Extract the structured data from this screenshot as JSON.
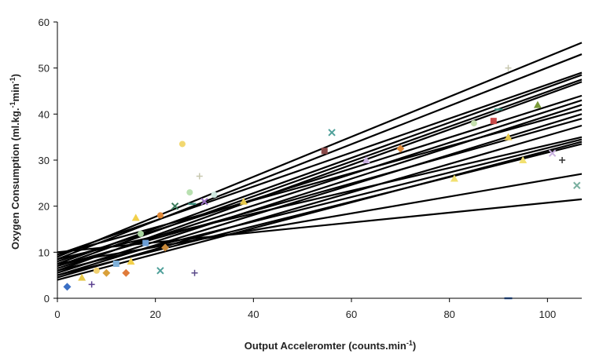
{
  "chart_data": {
    "type": "line",
    "title": "",
    "xlabel_main": "Output Acceleromter (counts.min",
    "xlabel_sup": "-1",
    "xlabel_end": ")",
    "ylabel_main": "Oxygen Consumption (ml.kg.",
    "ylabel_sup1": "-1",
    "ylabel_mid": "min",
    "ylabel_sup2": "-1",
    "ylabel_end": ")",
    "xlim": [
      0,
      107
    ],
    "ylim": [
      0,
      60
    ],
    "xticks": [
      0,
      20,
      40,
      60,
      80,
      100
    ],
    "yticks": [
      0,
      10,
      20,
      30,
      40,
      50,
      60
    ],
    "grid": false,
    "legend": "none",
    "line_color": "#000000",
    "regression_lines": [
      {
        "x": [
          0,
          107
        ],
        "y": [
          9.0,
          55.5
        ]
      },
      {
        "x": [
          0,
          107
        ],
        "y": [
          8.5,
          53.0
        ]
      },
      {
        "x": [
          0,
          107
        ],
        "y": [
          9.5,
          49.0
        ]
      },
      {
        "x": [
          0,
          107
        ],
        "y": [
          7.5,
          48.5
        ]
      },
      {
        "x": [
          0,
          107
        ],
        "y": [
          7.0,
          47.5
        ]
      },
      {
        "x": [
          0,
          107
        ],
        "y": [
          6.0,
          47.0
        ]
      },
      {
        "x": [
          0,
          107
        ],
        "y": [
          8.0,
          44.0
        ]
      },
      {
        "x": [
          0,
          107
        ],
        "y": [
          6.5,
          43.0
        ]
      },
      {
        "x": [
          0,
          107
        ],
        "y": [
          5.5,
          42.0
        ]
      },
      {
        "x": [
          0,
          107
        ],
        "y": [
          9.5,
          41.0
        ]
      },
      {
        "x": [
          0,
          107
        ],
        "y": [
          5.0,
          40.0
        ]
      },
      {
        "x": [
          0,
          107
        ],
        "y": [
          7.0,
          39.0
        ]
      },
      {
        "x": [
          0,
          107
        ],
        "y": [
          4.5,
          37.5
        ]
      },
      {
        "x": [
          0,
          107
        ],
        "y": [
          8.5,
          35.0
        ]
      },
      {
        "x": [
          0,
          107
        ],
        "y": [
          6.0,
          34.5
        ]
      },
      {
        "x": [
          0,
          107
        ],
        "y": [
          4.0,
          34.0
        ]
      },
      {
        "x": [
          0,
          107
        ],
        "y": [
          5.0,
          33.5
        ]
      },
      {
        "x": [
          0,
          107
        ],
        "y": [
          7.5,
          27.0
        ]
      },
      {
        "x": [
          0,
          107
        ],
        "y": [
          10.0,
          21.5
        ]
      }
    ],
    "scatter_points": [
      {
        "x": 2,
        "y": 2.5,
        "marker": "diamond",
        "color": "#3a6fc4"
      },
      {
        "x": 5,
        "y": 4.5,
        "marker": "triangle",
        "color": "#e6c84a"
      },
      {
        "x": 7,
        "y": 3,
        "marker": "plus",
        "color": "#5a3f8f"
      },
      {
        "x": 8,
        "y": 6,
        "marker": "circle",
        "color": "#f0d070"
      },
      {
        "x": 10,
        "y": 5.5,
        "marker": "diamond",
        "color": "#d9a03a"
      },
      {
        "x": 12,
        "y": 7.5,
        "marker": "square",
        "color": "#7fb0d9"
      },
      {
        "x": 14,
        "y": 5.5,
        "marker": "diamond",
        "color": "#e07b3a"
      },
      {
        "x": 15,
        "y": 8,
        "marker": "triangle",
        "color": "#f2d04a"
      },
      {
        "x": 16,
        "y": 17.5,
        "marker": "triangle",
        "color": "#f2d04a"
      },
      {
        "x": 17,
        "y": 14,
        "marker": "circle",
        "color": "#a9d6a0"
      },
      {
        "x": 18,
        "y": 12,
        "marker": "square",
        "color": "#6d9fd6"
      },
      {
        "x": 21,
        "y": 18,
        "marker": "circle",
        "color": "#e08a3a"
      },
      {
        "x": 21,
        "y": 6,
        "marker": "x",
        "color": "#4fa09a"
      },
      {
        "x": 22,
        "y": 11,
        "marker": "diamond",
        "color": "#c98a3a"
      },
      {
        "x": 24,
        "y": 20,
        "marker": "x",
        "color": "#3a7a5a"
      },
      {
        "x": 25.5,
        "y": 33.5,
        "marker": "circle",
        "color": "#f2d870"
      },
      {
        "x": 27,
        "y": 23,
        "marker": "circle",
        "color": "#b8e0b0"
      },
      {
        "x": 27.5,
        "y": 20.5,
        "marker": "dash",
        "color": "#3a8a7a"
      },
      {
        "x": 28,
        "y": 5.5,
        "marker": "plus",
        "color": "#5a4a8a"
      },
      {
        "x": 29,
        "y": 26.5,
        "marker": "plus",
        "color": "#c8c8b0"
      },
      {
        "x": 30,
        "y": 21,
        "marker": "x",
        "color": "#9a6fc4"
      },
      {
        "x": 32,
        "y": 22.5,
        "marker": "circle",
        "color": "#d0e8e0"
      },
      {
        "x": 38,
        "y": 21,
        "marker": "triangle",
        "color": "#e6c84a"
      },
      {
        "x": 54.5,
        "y": 32,
        "marker": "square",
        "color": "#8a4a4a"
      },
      {
        "x": 56,
        "y": 36,
        "marker": "x",
        "color": "#4fa09a"
      },
      {
        "x": 63,
        "y": 30,
        "marker": "triangle",
        "color": "#c9b0e0"
      },
      {
        "x": 70,
        "y": 32.5,
        "marker": "diamond",
        "color": "#e08a3a"
      },
      {
        "x": 81,
        "y": 26,
        "marker": "triangle",
        "color": "#f2e070"
      },
      {
        "x": 85,
        "y": 38,
        "marker": "circle",
        "color": "#c6e0b0"
      },
      {
        "x": 89,
        "y": 38.5,
        "marker": "square",
        "color": "#c94a4a"
      },
      {
        "x": 90,
        "y": 41,
        "marker": "dash",
        "color": "#3a8a7a"
      },
      {
        "x": 92,
        "y": 35,
        "marker": "triangle",
        "color": "#e6c84a"
      },
      {
        "x": 92,
        "y": 50,
        "marker": "plus",
        "color": "#c8c8b0"
      },
      {
        "x": 92,
        "y": 0,
        "marker": "dash",
        "color": "#3a6fc4"
      },
      {
        "x": 95,
        "y": 30,
        "marker": "triangle",
        "color": "#f2e070"
      },
      {
        "x": 98,
        "y": 42,
        "marker": "triangle",
        "color": "#7a9a3a"
      },
      {
        "x": 101,
        "y": 31.5,
        "marker": "x",
        "color": "#c9b0e0"
      },
      {
        "x": 103,
        "y": 30,
        "marker": "plus",
        "color": "#333333"
      },
      {
        "x": 106,
        "y": 24.5,
        "marker": "x",
        "color": "#7ab0a0"
      }
    ]
  }
}
